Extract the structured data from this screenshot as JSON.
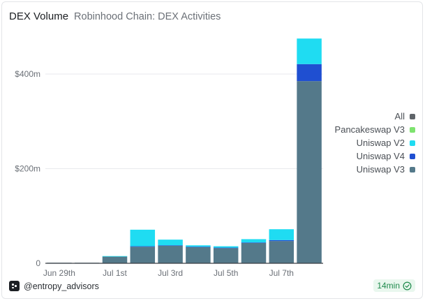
{
  "header": {
    "title": "DEX Volume",
    "subtitle": "Robinhood Chain: DEX Activities"
  },
  "footer": {
    "handle": "@entropy_advisors",
    "freshness": "14min"
  },
  "icons": {
    "brand": "entropy-logo-icon",
    "freshness": "check-circle-icon"
  },
  "chart_data": {
    "type": "bar",
    "stacked": true,
    "categories": [
      "Jun 29th",
      "Jun 30th",
      "Jul 1st",
      "Jul 2nd",
      "Jul 3rd",
      "Jul 4th",
      "Jul 5th",
      "Jul 6th",
      "Jul 7th",
      "Jul 8th"
    ],
    "x_tick_labels": [
      "Jun 29th",
      "Jul 1st",
      "Jul 3rd",
      "Jul 5th",
      "Jul 7th"
    ],
    "y_ticks": [
      {
        "value": 0,
        "label": "0"
      },
      {
        "value": 200,
        "label": "$200m"
      },
      {
        "value": 400,
        "label": "$400m"
      }
    ],
    "ylim": [
      0,
      480
    ],
    "unit": "$m",
    "grid": true,
    "legend_position": "right",
    "legend": [
      {
        "name": "All",
        "color": "#5f6469"
      },
      {
        "name": "Pancakeswap V3",
        "color": "#7ee36f"
      },
      {
        "name": "Uniswap V2",
        "color": "#1fdcf2"
      },
      {
        "name": "Uniswap V4",
        "color": "#1f4fd1"
      },
      {
        "name": "Uniswap V3",
        "color": "#54798a"
      }
    ],
    "series": [
      {
        "name": "Uniswap V3",
        "color": "#54798a",
        "values": [
          0.5,
          0.5,
          14,
          35,
          37,
          34,
          32,
          43,
          47,
          385
        ]
      },
      {
        "name": "Uniswap V4",
        "color": "#1f4fd1",
        "values": [
          0,
          0,
          0,
          1,
          1,
          1,
          1,
          1,
          2,
          36
        ]
      },
      {
        "name": "Uniswap V2",
        "color": "#1fdcf2",
        "values": [
          0,
          0,
          1,
          35,
          12,
          3,
          3,
          7,
          23,
          54
        ]
      },
      {
        "name": "Pancakeswap V3",
        "color": "#7ee36f",
        "values": [
          0,
          0,
          0,
          0,
          0,
          0,
          0,
          0,
          0,
          0
        ]
      }
    ]
  }
}
